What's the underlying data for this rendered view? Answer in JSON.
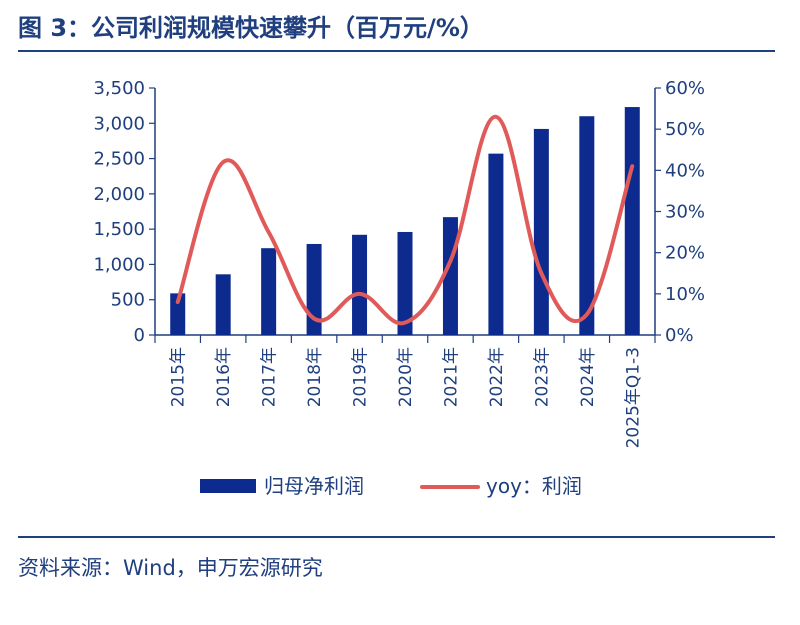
{
  "figure": {
    "title": "图 3：公司利润规模快速攀升（百万元/%）",
    "source": "资料来源：Wind，申万宏源研究"
  },
  "colors": {
    "bar": "#0d2b8f",
    "line": "#e05a5a",
    "text": "#1f3f7f",
    "axis": "#1f3f7f"
  },
  "chart_data": {
    "type": "bar",
    "categories": [
      "2015年",
      "2016年",
      "2017年",
      "2018年",
      "2019年",
      "2020年",
      "2021年",
      "2022年",
      "2023年",
      "2024年",
      "2025年Q1-3"
    ],
    "series": [
      {
        "name": "归母净利润",
        "type": "bar",
        "axis": "left",
        "values": [
          590,
          860,
          1230,
          1290,
          1420,
          1460,
          1670,
          2570,
          2920,
          3100,
          3230
        ]
      },
      {
        "name": "yoy：利润",
        "type": "line",
        "axis": "right",
        "values": [
          0.08,
          0.42,
          0.25,
          0.04,
          0.1,
          0.03,
          0.18,
          0.53,
          0.15,
          0.05,
          0.41
        ]
      }
    ],
    "y_left": {
      "ylim": [
        0,
        3500
      ],
      "ticks": [
        0,
        500,
        1000,
        1500,
        2000,
        2500,
        3000,
        3500
      ],
      "tick_labels": [
        "0",
        "500",
        "1,000",
        "1,500",
        "2,000",
        "2,500",
        "3,000",
        "3,500"
      ]
    },
    "y_right": {
      "ylim": [
        0,
        0.6
      ],
      "ticks": [
        0,
        0.1,
        0.2,
        0.3,
        0.4,
        0.5,
        0.6
      ],
      "tick_labels": [
        "0%",
        "10%",
        "20%",
        "30%",
        "40%",
        "50%",
        "60%"
      ]
    },
    "legend_position": "bottom",
    "grid": false
  }
}
